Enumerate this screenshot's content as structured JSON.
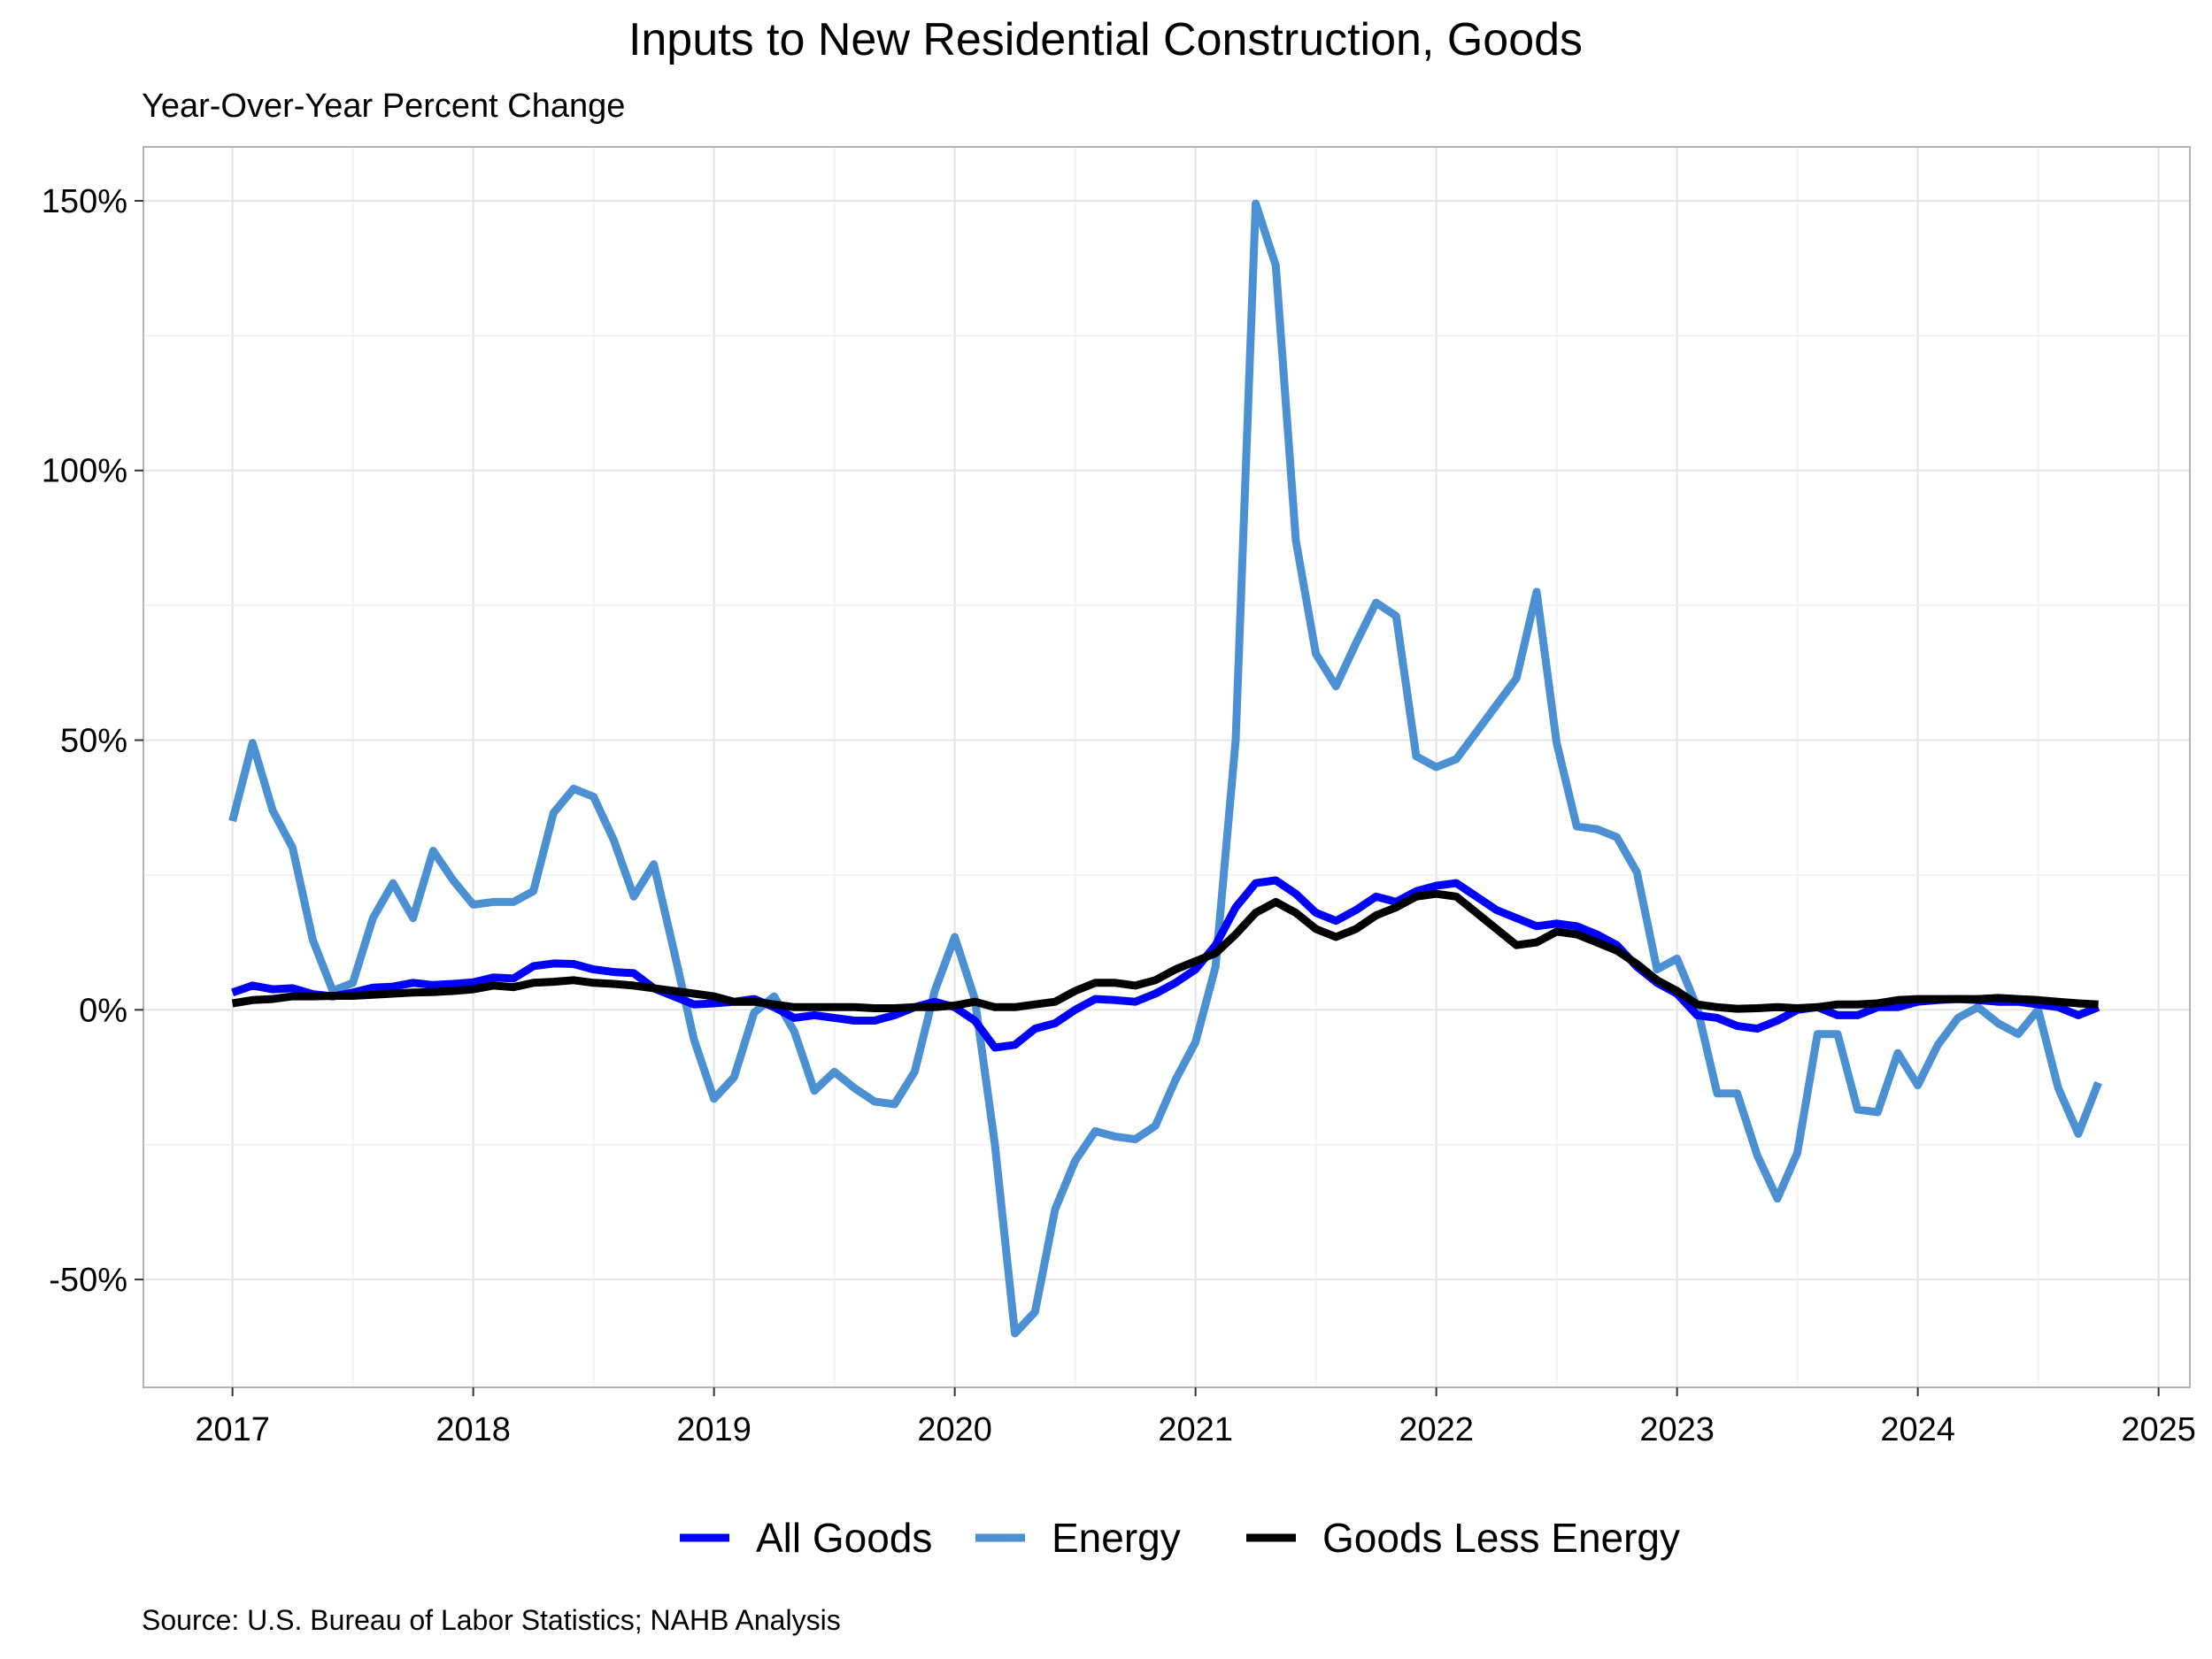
{
  "chart_data": {
    "type": "line",
    "title": "Inputs to New Residential Construction, Goods",
    "subtitle": "Year-Over-Year Percent Change",
    "source": "Source: U.S. Bureau of Labor Statistics; NAHB Analysis",
    "xlabel": "",
    "ylabel": "",
    "xlim": [
      2016.63,
      2025.13
    ],
    "ylim": [
      -70,
      160
    ],
    "x_ticks": [
      "2017",
      "2018",
      "2019",
      "2020",
      "2021",
      "2022",
      "2023",
      "2024",
      "2025"
    ],
    "y_ticks": [
      "-50%",
      "0%",
      "50%",
      "100%",
      "150%"
    ],
    "y_tick_values": [
      -50,
      0,
      50,
      100,
      150
    ],
    "grid": true,
    "legend_position": "bottom",
    "x_start": "2017-01",
    "series": [
      {
        "name": "All Goods",
        "color": "#0000ff",
        "values": [
          3.2,
          4.5,
          3.8,
          4.0,
          2.9,
          2.5,
          3.2,
          4.1,
          4.3,
          5.0,
          4.6,
          4.8,
          5.1,
          6.0,
          5.8,
          8.1,
          8.6,
          8.5,
          7.5,
          7.0,
          6.8,
          4.0,
          2.5,
          1.0,
          1.2,
          1.5,
          2.0,
          0.5,
          -1.5,
          -1.0,
          -1.5,
          -2.0,
          -2.0,
          -1.0,
          0.5,
          1.5,
          0.5,
          -2.0,
          -7.0,
          -6.5,
          -3.5,
          -2.5,
          0.0,
          2.0,
          1.8,
          1.5,
          3.0,
          5.0,
          7.5,
          12.0,
          19.0,
          23.5,
          24.0,
          21.5,
          18.0,
          16.5,
          18.5,
          21.0,
          20.0,
          22.0,
          23.0,
          23.5,
          21.0,
          18.5,
          17.0,
          15.5,
          16.0,
          15.5,
          14.0,
          12.0,
          8.0,
          5.0,
          3.0,
          -1.0,
          -1.5,
          -3.0,
          -3.5,
          -2.0,
          0.0,
          0.5,
          -1.0,
          -1.0,
          0.5,
          0.5,
          1.5,
          1.8,
          2.0,
          1.8,
          1.5,
          1.5,
          1.0,
          0.5,
          -1.0,
          0.5
        ]
      },
      {
        "name": "Energy",
        "color": "#4a90d2",
        "values": [
          35.0,
          49.5,
          37.0,
          30.0,
          13.0,
          3.5,
          5.0,
          17.0,
          23.5,
          17.0,
          29.5,
          24.0,
          19.5,
          20.0,
          20.0,
          22.0,
          36.5,
          41.0,
          39.5,
          31.5,
          21.0,
          27.0,
          11.0,
          -5.5,
          -16.5,
          -12.5,
          -0.5,
          2.5,
          -4.0,
          -15.0,
          -11.5,
          -14.5,
          -17.0,
          -17.5,
          -11.5,
          3.5,
          13.5,
          2.0,
          -25.0,
          -60.0,
          -56.0,
          -37.0,
          -28.0,
          -22.5,
          -23.5,
          -24.0,
          -21.5,
          -13.0,
          -6.0,
          8.0,
          50.0,
          149.5,
          138.0,
          87.0,
          66.0,
          60.0,
          68.0,
          75.5,
          73.0,
          47.0,
          45.0,
          46.5,
          51.5,
          56.5,
          61.5,
          77.5,
          49.5,
          34.0,
          33.5,
          32.0,
          25.5,
          7.5,
          9.5,
          0.5,
          -15.5,
          -15.5,
          -27.0,
          -35.0,
          -26.5,
          -4.5,
          -4.5,
          -18.5,
          -19.0,
          -8.0,
          -14.0,
          -6.5,
          -1.5,
          0.5,
          -2.5,
          -4.5,
          0.0,
          -14.5,
          -23.0,
          -13.5
        ]
      },
      {
        "name": "Goods Less Energy",
        "color": "#000000",
        "values": [
          1.2,
          1.8,
          2.0,
          2.5,
          2.5,
          2.6,
          2.6,
          2.8,
          3.0,
          3.2,
          3.3,
          3.5,
          3.8,
          4.5,
          4.2,
          5.0,
          5.2,
          5.5,
          5.0,
          4.8,
          4.5,
          4.0,
          3.5,
          3.0,
          2.5,
          1.5,
          1.5,
          1.0,
          0.5,
          0.5,
          0.5,
          0.5,
          0.3,
          0.3,
          0.5,
          0.5,
          0.8,
          1.5,
          0.5,
          0.5,
          1.0,
          1.5,
          3.5,
          5.0,
          5.0,
          4.5,
          5.5,
          7.5,
          9.0,
          10.5,
          14.0,
          18.0,
          20.0,
          18.0,
          15.0,
          13.5,
          15.0,
          17.5,
          19.0,
          21.0,
          21.5,
          21.0,
          18.0,
          15.0,
          12.0,
          12.5,
          14.5,
          14.0,
          12.5,
          11.0,
          8.5,
          5.5,
          3.5,
          1.0,
          0.5,
          0.2,
          0.3,
          0.5,
          0.3,
          0.5,
          1.0,
          1.0,
          1.2,
          1.8,
          2.0,
          2.0,
          2.0,
          2.0,
          2.2,
          2.0,
          1.8,
          1.5,
          1.2,
          1.0
        ]
      }
    ]
  }
}
